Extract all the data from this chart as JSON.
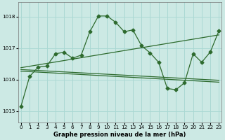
{
  "title": "Graphe pression niveau de la mer (hPa)",
  "bg_color": "#cce9e4",
  "grid_color": "#aad8d3",
  "line_color": "#2d6a2d",
  "xlim": [
    -0.3,
    23.3
  ],
  "ylim": [
    1014.65,
    1018.45
  ],
  "yticks": [
    1015,
    1016,
    1017,
    1018
  ],
  "xticks": [
    0,
    1,
    2,
    3,
    4,
    5,
    6,
    7,
    8,
    9,
    10,
    11,
    12,
    13,
    14,
    15,
    16,
    17,
    18,
    19,
    20,
    21,
    22,
    23
  ],
  "curve_x": [
    0,
    1,
    2,
    3,
    4,
    5,
    6,
    7,
    8,
    9,
    10,
    11,
    12,
    13,
    14,
    15,
    16,
    17,
    18,
    19,
    20,
    21,
    22,
    23
  ],
  "curve_y": [
    1015.15,
    1016.1,
    1016.4,
    1016.43,
    1016.82,
    1016.87,
    1016.68,
    1016.78,
    1017.52,
    1018.02,
    1018.02,
    1017.82,
    1017.52,
    1017.58,
    1017.08,
    1016.85,
    1016.55,
    1015.72,
    1015.68,
    1015.9,
    1016.82,
    1016.55,
    1016.88,
    1017.55
  ],
  "upper_line_x": [
    0,
    23
  ],
  "upper_line_y": [
    1016.38,
    1017.42
  ],
  "lower_line1_x": [
    0,
    23
  ],
  "lower_line1_y": [
    1016.32,
    1015.98
  ],
  "lower_line2_x": [
    0,
    23
  ],
  "lower_line2_y": [
    1016.27,
    1015.92
  ]
}
